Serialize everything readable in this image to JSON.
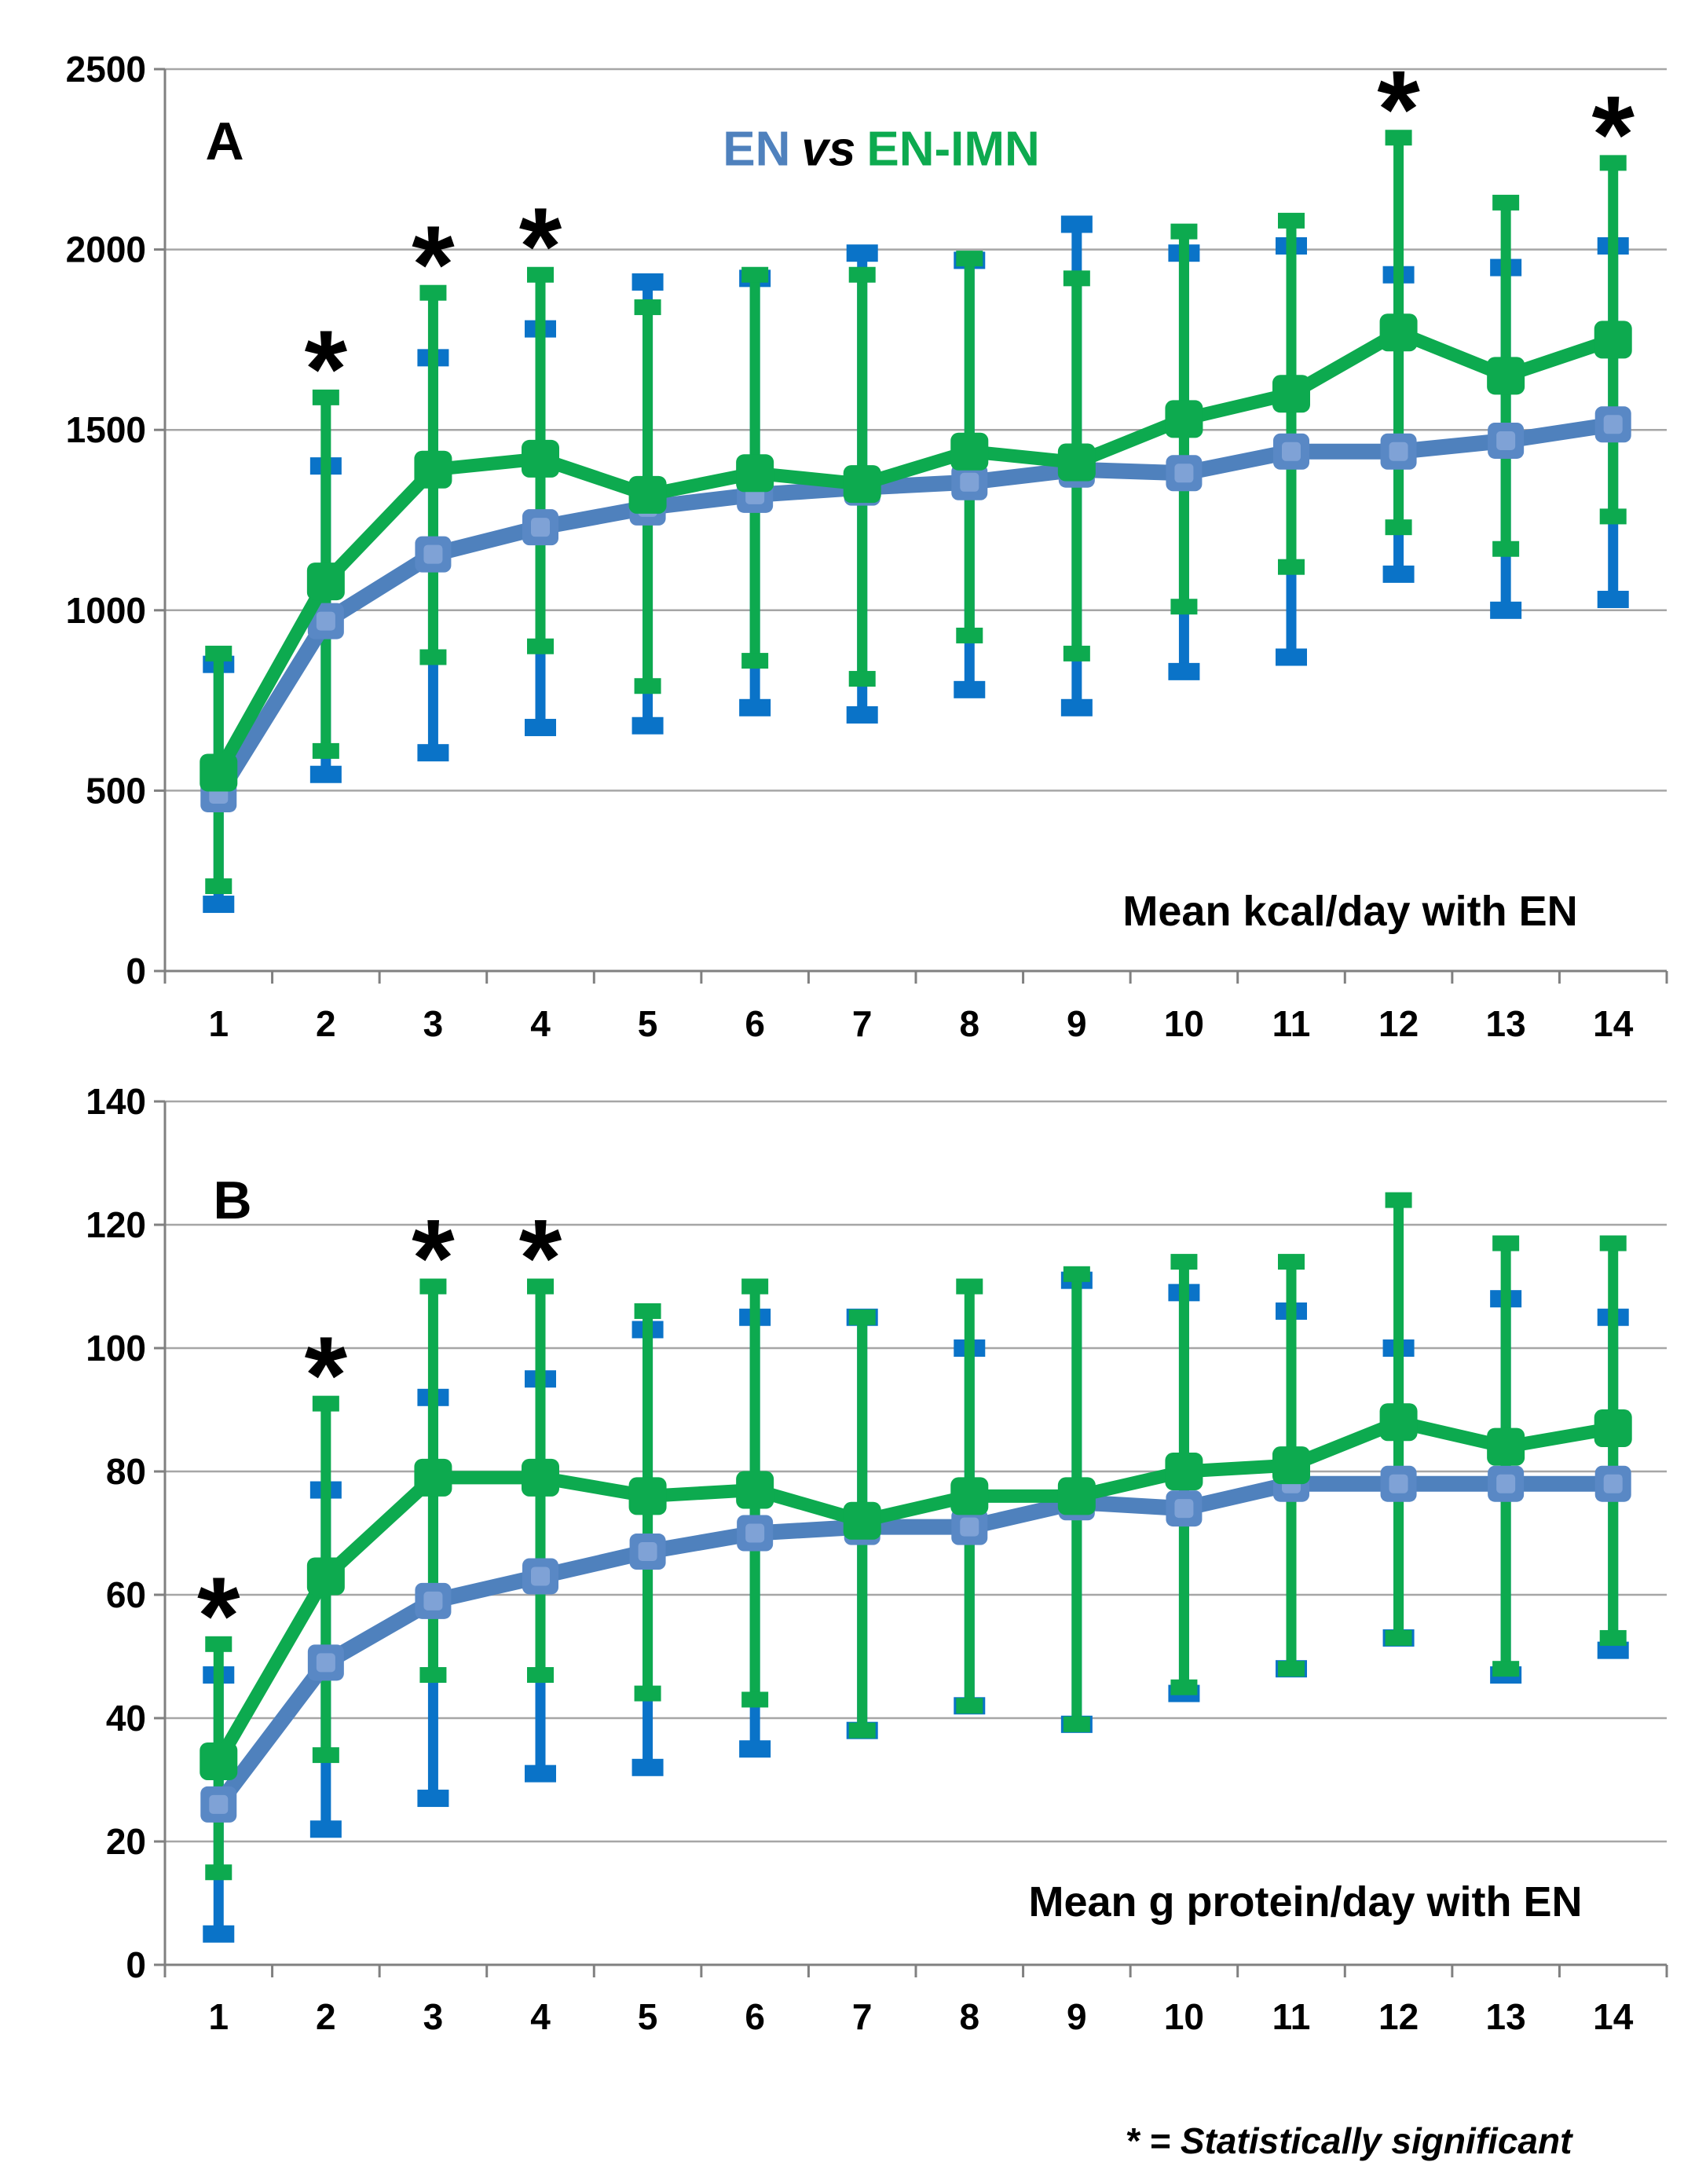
{
  "figure": {
    "legend": {
      "en_label": "EN",
      "vs_label": "vs",
      "en_imn_label": "EN-IMN"
    },
    "footnote": {
      "asterisk": "*",
      "text": "= Statistically significant"
    },
    "colors": {
      "en_line": "#4F81BD",
      "en_marker": "#5988C5",
      "en_marker_inner": "#7FA2D6",
      "en_error": "#0A73C8",
      "en_imn": "#0DAA4F",
      "grid": "#A6A6A6",
      "axis": "#808080",
      "text": "#000000",
      "background": "#FFFFFF"
    }
  },
  "chart_data": [
    {
      "type": "line",
      "panel_label": "A",
      "title": "Mean kcal/day with EN",
      "categories": [
        "1",
        "2",
        "3",
        "4",
        "5",
        "6",
        "7",
        "8",
        "9",
        "10",
        "11",
        "12",
        "13",
        "14"
      ],
      "ylim": [
        0,
        2500
      ],
      "yticks": [
        0,
        500,
        1000,
        1500,
        2000,
        2500
      ],
      "grid": true,
      "legend_position": "top",
      "series": [
        {
          "name": "EN",
          "values": [
            490,
            970,
            1155,
            1230,
            1285,
            1320,
            1340,
            1355,
            1390,
            1380,
            1440,
            1440,
            1470,
            1515
          ],
          "upper": [
            850,
            1400,
            1700,
            1780,
            1910,
            1920,
            1990,
            1970,
            2070,
            1990,
            2010,
            1930,
            1950,
            2010
          ],
          "lower": [
            185,
            545,
            605,
            675,
            680,
            730,
            710,
            780,
            730,
            830,
            870,
            1100,
            1000,
            1030
          ]
        },
        {
          "name": "EN-IMN",
          "values": [
            550,
            1080,
            1390,
            1420,
            1320,
            1380,
            1350,
            1440,
            1410,
            1530,
            1600,
            1770,
            1650,
            1750
          ],
          "upper": [
            880,
            1590,
            1880,
            1930,
            1840,
            1930,
            1930,
            1975,
            1920,
            2050,
            2080,
            2310,
            2130,
            2240
          ],
          "lower": [
            235,
            610,
            870,
            900,
            790,
            860,
            810,
            930,
            880,
            1010,
            1120,
            1230,
            1170,
            1260
          ]
        }
      ],
      "significant_points": [
        2,
        3,
        4,
        12,
        14
      ]
    },
    {
      "type": "line",
      "panel_label": "B",
      "title": "Mean g protein/day with EN",
      "categories": [
        "1",
        "2",
        "3",
        "4",
        "5",
        "6",
        "7",
        "8",
        "9",
        "10",
        "11",
        "12",
        "13",
        "14"
      ],
      "ylim": [
        0,
        140
      ],
      "yticks": [
        0,
        20,
        40,
        60,
        80,
        100,
        120,
        140
      ],
      "grid": true,
      "legend_position": "top",
      "series": [
        {
          "name": "EN",
          "values": [
            26,
            49,
            59,
            63,
            67,
            70,
            71,
            71,
            75,
            74,
            78,
            78,
            78,
            78
          ],
          "upper": [
            47,
            77,
            92,
            95,
            103,
            105,
            105,
            100,
            111,
            109,
            106,
            100,
            108,
            105
          ],
          "lower": [
            5,
            22,
            27,
            31,
            32,
            35,
            38,
            42,
            39,
            44,
            48,
            53,
            47,
            51
          ]
        },
        {
          "name": "EN-IMN",
          "values": [
            33,
            63,
            79,
            79,
            76,
            77,
            72,
            76,
            76,
            80,
            81,
            88,
            84,
            87
          ],
          "upper": [
            52,
            91,
            110,
            110,
            106,
            110,
            105,
            110,
            112,
            114,
            114,
            124,
            117,
            117
          ],
          "lower": [
            15,
            34,
            47,
            47,
            44,
            43,
            38,
            42,
            39,
            45,
            48,
            53,
            48,
            53
          ]
        }
      ],
      "significant_points": [
        1,
        2,
        3,
        4
      ]
    }
  ]
}
